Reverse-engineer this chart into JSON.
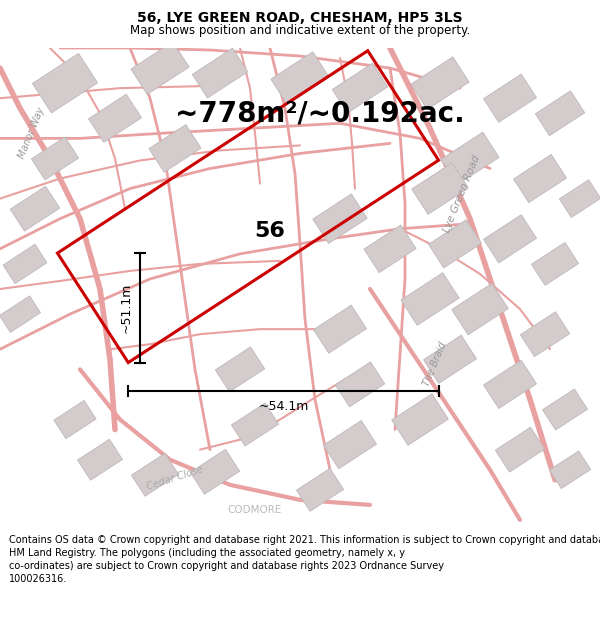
{
  "title": "56, LYE GREEN ROAD, CHESHAM, HP5 3LS",
  "subtitle": "Map shows position and indicative extent of the property.",
  "area_text": "~778m²/~0.192ac.",
  "width_label": "~54.1m",
  "height_label": "~51.1m",
  "property_number": "56",
  "footer": "Contains OS data © Crown copyright and database right 2021. This information is subject to Crown copyright and database rights 2023 and is reproduced with the permission of\nHM Land Registry. The polygons (including the associated geometry, namely x, y\nco-ordinates) are subject to Crown copyright and database rights 2023 Ordnance Survey\n100026316.",
  "map_bg": "#f8f4f4",
  "plot_color": "#cc0000",
  "road_color": "#e8a0a0",
  "building_color": "#d4cccc",
  "building_edge": "#c0b8b8",
  "title_fontsize": 10,
  "subtitle_fontsize": 8.5,
  "area_fontsize": 20,
  "label_fontsize": 9,
  "footer_fontsize": 7,
  "property_fontsize": 16
}
